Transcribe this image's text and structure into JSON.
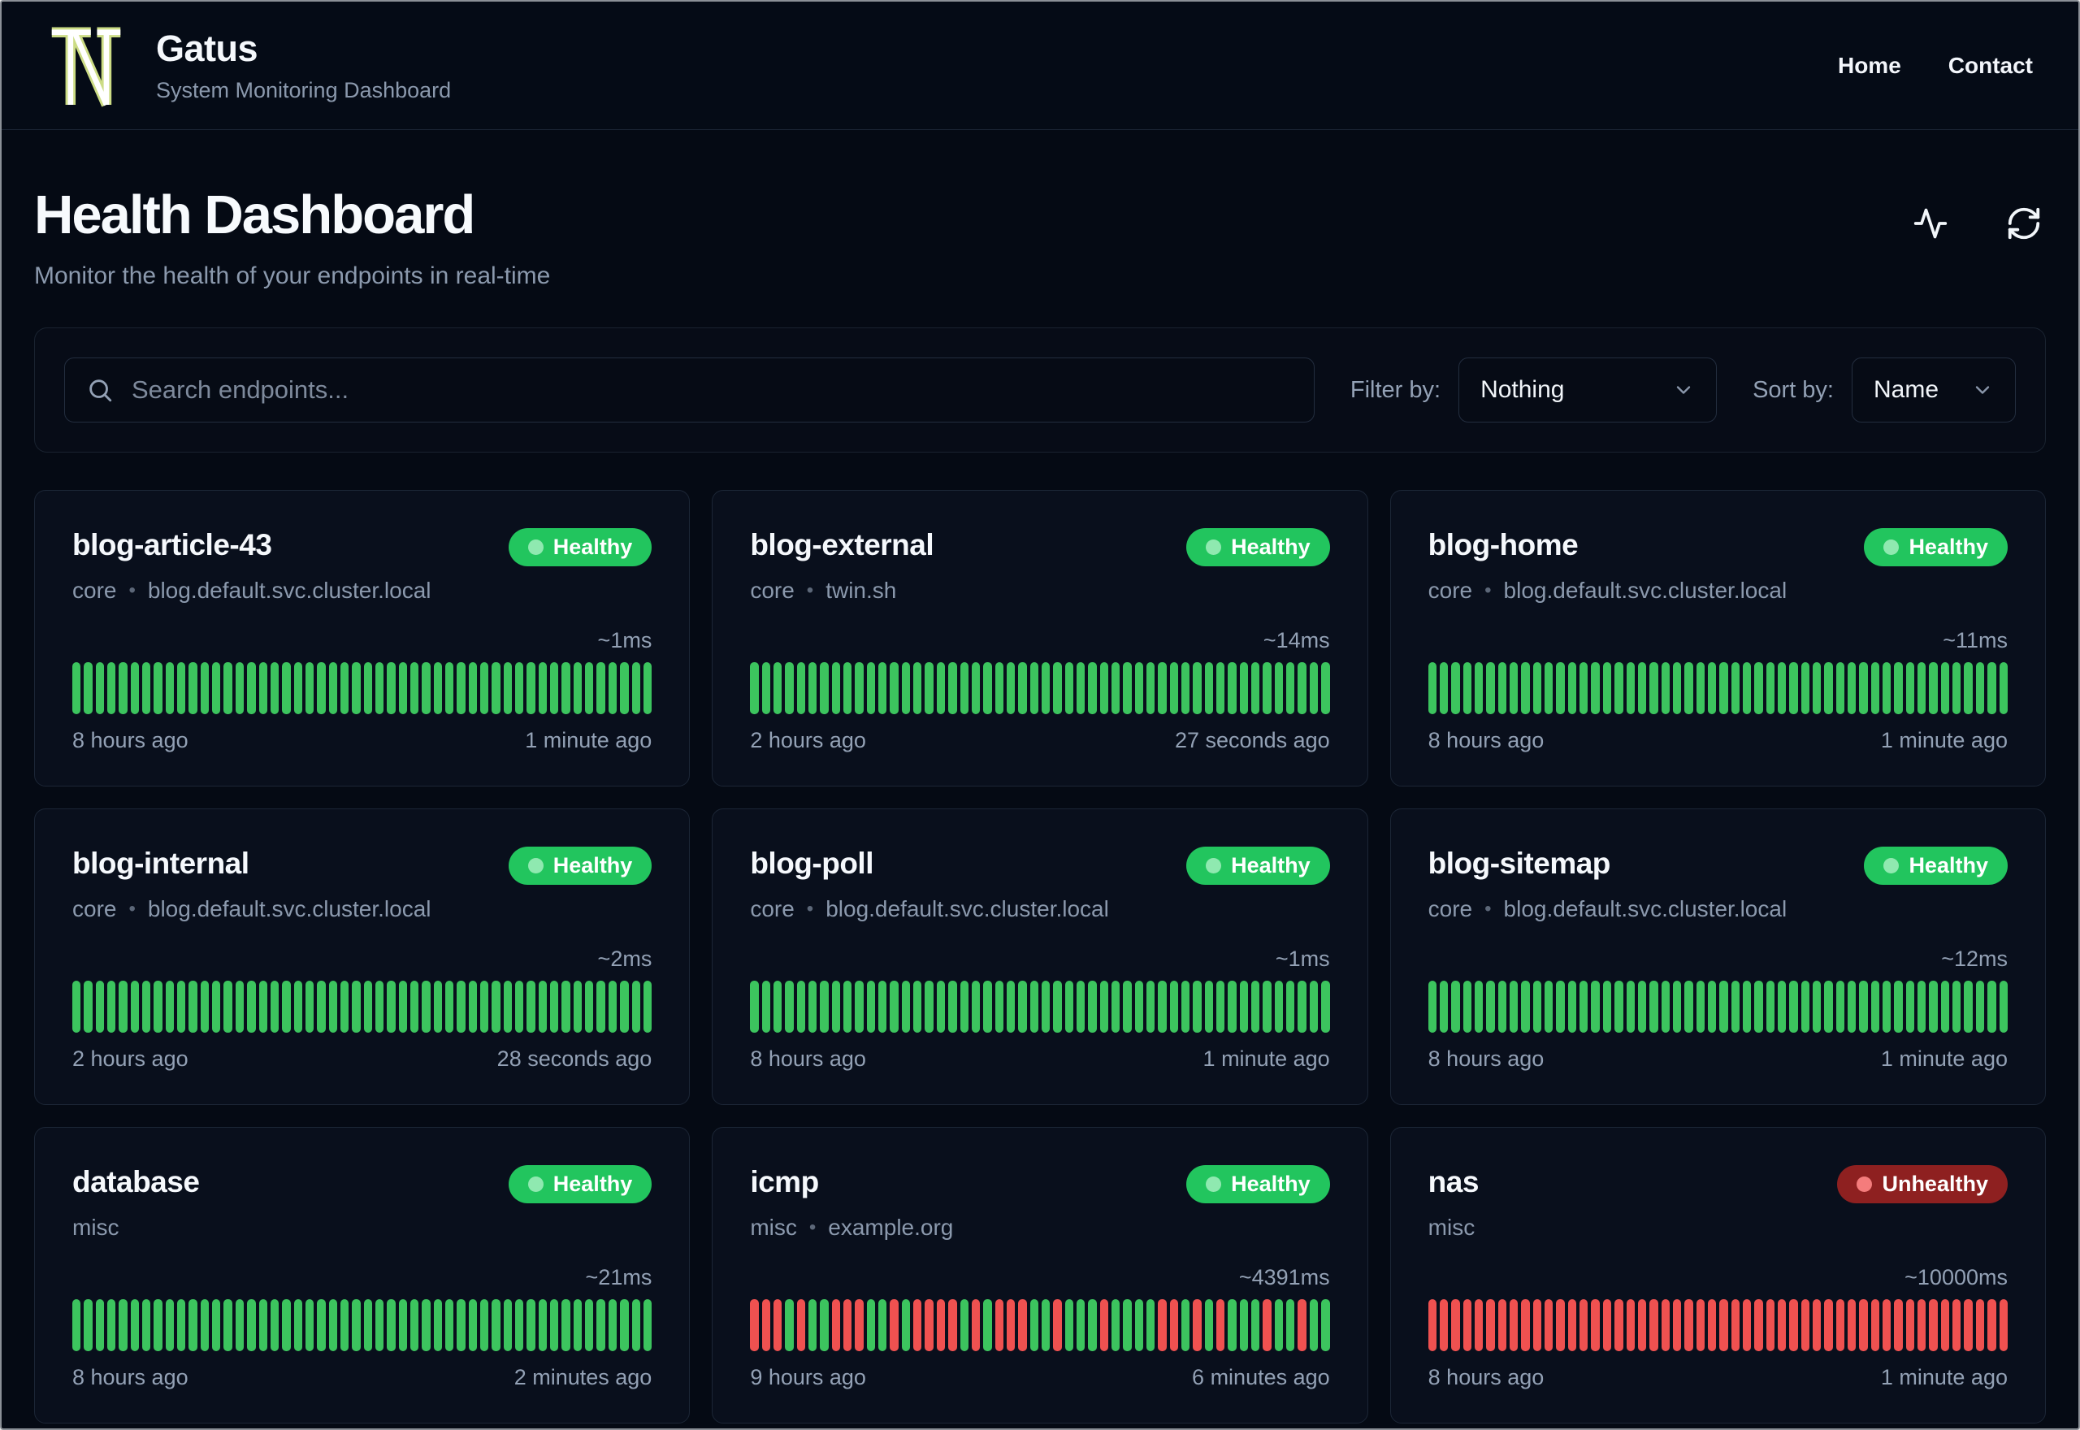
{
  "header": {
    "brand": "Gatus",
    "tagline": "System Monitoring Dashboard",
    "nav": {
      "home": "Home",
      "contact": "Contact"
    }
  },
  "hero": {
    "title": "Health Dashboard",
    "subtitle": "Monitor the health of your endpoints in real-time",
    "icons": [
      "activity-icon",
      "refresh-icon"
    ]
  },
  "toolbar": {
    "search_placeholder": "Search endpoints...",
    "filter_label": "Filter by:",
    "filter_value": "Nothing",
    "sort_label": "Sort by:",
    "sort_value": "Name"
  },
  "colors": {
    "background": "#050a14",
    "card_background": "#090f1c",
    "card_border": "#1c2636",
    "healthy_badge": "#22c55e",
    "unhealthy_badge": "#8e2020",
    "bar_success": "#3cc45e",
    "bar_failure": "#ef5150",
    "muted_text": "#8b99ad",
    "logo_outline": "#ccdc85"
  },
  "cards": [
    {
      "name": "blog-article-43",
      "group": "core",
      "sep": "•",
      "target": "blog.default.svc.cluster.local",
      "status": "Healthy",
      "response_time": "~1ms",
      "oldest": "8 hours ago",
      "newest": "1 minute ago",
      "history": "GGGGGGGGGGGGGGGGGGGGGGGGGGGGGGGGGGGGGGGGGGGGGGGGGG"
    },
    {
      "name": "blog-external",
      "group": "core",
      "sep": "•",
      "target": "twin.sh",
      "status": "Healthy",
      "response_time": "~14ms",
      "oldest": "2 hours ago",
      "newest": "27 seconds ago",
      "history": "GGGGGGGGGGGGGGGGGGGGGGGGGGGGGGGGGGGGGGGGGGGGGGGGGG"
    },
    {
      "name": "blog-home",
      "group": "core",
      "sep": "•",
      "target": "blog.default.svc.cluster.local",
      "status": "Healthy",
      "response_time": "~11ms",
      "oldest": "8 hours ago",
      "newest": "1 minute ago",
      "history": "GGGGGGGGGGGGGGGGGGGGGGGGGGGGGGGGGGGGGGGGGGGGGGGGGG"
    },
    {
      "name": "blog-internal",
      "group": "core",
      "sep": "•",
      "target": "blog.default.svc.cluster.local",
      "status": "Healthy",
      "response_time": "~2ms",
      "oldest": "2 hours ago",
      "newest": "28 seconds ago",
      "history": "GGGGGGGGGGGGGGGGGGGGGGGGGGGGGGGGGGGGGGGGGGGGGGGGGG"
    },
    {
      "name": "blog-poll",
      "group": "core",
      "sep": "•",
      "target": "blog.default.svc.cluster.local",
      "status": "Healthy",
      "response_time": "~1ms",
      "oldest": "8 hours ago",
      "newest": "1 minute ago",
      "history": "GGGGGGGGGGGGGGGGGGGGGGGGGGGGGGGGGGGGGGGGGGGGGGGGGG"
    },
    {
      "name": "blog-sitemap",
      "group": "core",
      "sep": "•",
      "target": "blog.default.svc.cluster.local",
      "status": "Healthy",
      "response_time": "~12ms",
      "oldest": "8 hours ago",
      "newest": "1 minute ago",
      "history": "GGGGGGGGGGGGGGGGGGGGGGGGGGGGGGGGGGGGGGGGGGGGGGGGGG"
    },
    {
      "name": "database",
      "group": "misc",
      "sep": "",
      "target": "",
      "status": "Healthy",
      "response_time": "~21ms",
      "oldest": "8 hours ago",
      "newest": "2 minutes ago",
      "history": "GGGGGGGGGGGGGGGGGGGGGGGGGGGGGGGGGGGGGGGGGGGGGGGGGG"
    },
    {
      "name": "icmp",
      "group": "misc",
      "sep": "•",
      "target": "example.org",
      "status": "Healthy",
      "response_time": "~4391ms",
      "oldest": "9 hours ago",
      "newest": "6 minutes ago",
      "history": "RRRGRGGRRRGGRGRRRRGRGRRRGGRGGGRGGGGRRGRGRGGGRGGRGG"
    },
    {
      "name": "nas",
      "group": "misc",
      "sep": "",
      "target": "",
      "status": "Unhealthy",
      "response_time": "~10000ms",
      "oldest": "8 hours ago",
      "newest": "1 minute ago",
      "history": "RRRRRRRRRRRRRRRRRRRRRRRRRRRRRRRRRRRRRRRRRRRRRRRRRR"
    }
  ]
}
